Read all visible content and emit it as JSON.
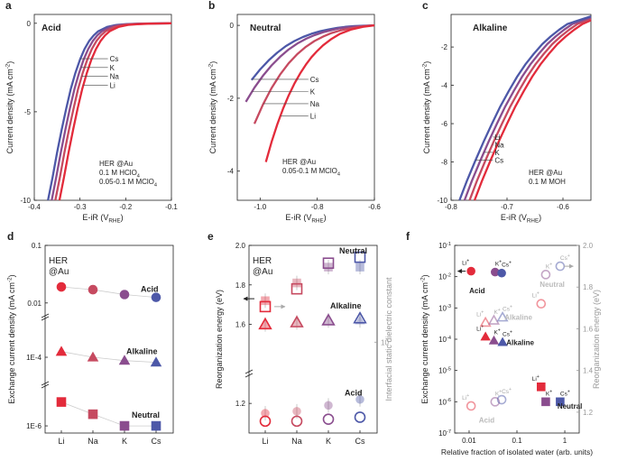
{
  "colors": {
    "Li": "#e32b3b",
    "Na": "#c64a60",
    "K": "#8a4d8e",
    "Cs": "#4d58a8",
    "grey": "#9a9a9a",
    "lightgrey": "#bbbbbb"
  },
  "chart_data": [
    {
      "panel": "a",
      "type": "line",
      "title": "Acid",
      "xlabel": "E-iR (VRHE)",
      "ylabel": "Current density (mA cm-2)",
      "xlim": [
        -0.4,
        -0.1
      ],
      "ylim": [
        -10,
        0.5
      ],
      "xticks": [
        "-0.4",
        "-0.3",
        "-0.2",
        "-0.1"
      ],
      "xtick_values": [
        -0.4,
        -0.3,
        -0.2,
        -0.1
      ],
      "yticks": [
        "-10",
        "-5",
        "0"
      ],
      "ytick_values": [
        -10,
        -5,
        0
      ],
      "legend": [
        "Cs",
        "K",
        "Na",
        "Li"
      ],
      "legend_label_x": -0.235,
      "legend_label_y": [
        -2.0,
        -2.5,
        -3.0,
        -3.5
      ],
      "legend_curve_y": [
        -2.0,
        -2.5,
        -3.0,
        -3.5
      ],
      "annotation": [
        "HER @Au",
        "0.1 M HClO4",
        "0.05-0.1 M MClO4"
      ],
      "series": [
        {
          "name": "Cs",
          "x": [
            -0.37,
            -0.36,
            -0.35,
            -0.34,
            -0.33,
            -0.32,
            -0.31,
            -0.3,
            -0.29,
            -0.28,
            -0.27,
            -0.26,
            -0.24,
            -0.22,
            -0.2,
            -0.17,
            -0.14,
            -0.1
          ],
          "y": [
            -10,
            -8.7,
            -7.3,
            -6.0,
            -4.8,
            -3.7,
            -2.8,
            -2.05,
            -1.45,
            -1.0,
            -0.68,
            -0.45,
            -0.2,
            -0.09,
            -0.05,
            -0.02,
            -0.01,
            0
          ]
        },
        {
          "name": "K",
          "x": [
            -0.362,
            -0.352,
            -0.342,
            -0.332,
            -0.322,
            -0.312,
            -0.302,
            -0.292,
            -0.282,
            -0.272,
            -0.262,
            -0.252,
            -0.232,
            -0.212,
            -0.192,
            -0.162,
            -0.132,
            -0.1
          ],
          "y": [
            -10,
            -8.7,
            -7.3,
            -6.0,
            -4.8,
            -3.7,
            -2.8,
            -2.05,
            -1.45,
            -1.0,
            -0.68,
            -0.45,
            -0.2,
            -0.09,
            -0.05,
            -0.02,
            -0.01,
            0
          ]
        },
        {
          "name": "Na",
          "x": [
            -0.354,
            -0.344,
            -0.334,
            -0.324,
            -0.314,
            -0.304,
            -0.294,
            -0.284,
            -0.274,
            -0.264,
            -0.254,
            -0.244,
            -0.224,
            -0.204,
            -0.184,
            -0.154,
            -0.124,
            -0.1
          ],
          "y": [
            -10,
            -8.7,
            -7.3,
            -6.0,
            -4.8,
            -3.7,
            -2.8,
            -2.05,
            -1.45,
            -1.0,
            -0.68,
            -0.45,
            -0.2,
            -0.09,
            -0.05,
            -0.02,
            -0.01,
            0
          ]
        },
        {
          "name": "Li",
          "x": [
            -0.345,
            -0.335,
            -0.325,
            -0.315,
            -0.305,
            -0.295,
            -0.285,
            -0.275,
            -0.265,
            -0.255,
            -0.245,
            -0.235,
            -0.215,
            -0.195,
            -0.175,
            -0.145,
            -0.12,
            -0.1
          ],
          "y": [
            -10,
            -8.7,
            -7.3,
            -6.0,
            -4.8,
            -3.7,
            -2.8,
            -2.05,
            -1.45,
            -1.0,
            -0.68,
            -0.45,
            -0.2,
            -0.09,
            -0.05,
            -0.02,
            -0.01,
            0
          ]
        }
      ]
    },
    {
      "panel": "b",
      "type": "line",
      "title": "Neutral",
      "xlabel": "E-iR (VRHE)",
      "ylabel": "Current density (mA cm-2)",
      "xlim": [
        -1.08,
        -0.6
      ],
      "ylim": [
        -4.8,
        0.3
      ],
      "xticks": [
        "-1.0",
        "-0.8",
        "-0.6"
      ],
      "xtick_values": [
        -1.0,
        -0.8,
        -0.6
      ],
      "yticks": [
        "-4",
        "-2",
        "0"
      ],
      "ytick_values": [
        -4,
        -2,
        0
      ],
      "legend": [
        "Cs",
        "K",
        "Na",
        "Li"
      ],
      "legend_label_x": -0.825,
      "legend_label_y": [
        -1.48,
        -1.82,
        -2.15,
        -2.48
      ],
      "legend_curve_y": [
        -1.48,
        -1.82,
        -2.15,
        -2.48
      ],
      "annotation": [
        "HER @Au",
        "0.05-0.1 M MClO4"
      ],
      "series": [
        {
          "name": "Cs",
          "x": [
            -1.03,
            -1.0,
            -0.97,
            -0.94,
            -0.91,
            -0.88,
            -0.85,
            -0.82,
            -0.79,
            -0.76,
            -0.73,
            -0.7,
            -0.67,
            -0.64,
            -0.6
          ],
          "y": [
            -1.5,
            -1.21,
            -0.96,
            -0.75,
            -0.57,
            -0.43,
            -0.32,
            -0.23,
            -0.16,
            -0.11,
            -0.07,
            -0.04,
            -0.02,
            -0.01,
            0
          ]
        },
        {
          "name": "K",
          "x": [
            -1.05,
            -1.02,
            -0.99,
            -0.96,
            -0.93,
            -0.9,
            -0.87,
            -0.84,
            -0.81,
            -0.78,
            -0.75,
            -0.72,
            -0.69,
            -0.66,
            -0.6
          ],
          "y": [
            -2.1,
            -1.71,
            -1.38,
            -1.1,
            -0.86,
            -0.66,
            -0.5,
            -0.37,
            -0.27,
            -0.19,
            -0.13,
            -0.08,
            -0.05,
            -0.03,
            0
          ]
        },
        {
          "name": "Na",
          "x": [
            -1.02,
            -0.99,
            -0.96,
            -0.93,
            -0.9,
            -0.87,
            -0.84,
            -0.81,
            -0.78,
            -0.75,
            -0.72,
            -0.69,
            -0.66,
            -0.63,
            -0.6
          ],
          "y": [
            -2.7,
            -2.17,
            -1.72,
            -1.35,
            -1.04,
            -0.79,
            -0.59,
            -0.43,
            -0.31,
            -0.21,
            -0.14,
            -0.09,
            -0.05,
            -0.02,
            0
          ]
        },
        {
          "name": "Li",
          "x": [
            -0.98,
            -0.96,
            -0.94,
            -0.92,
            -0.9,
            -0.88,
            -0.86,
            -0.84,
            -0.82,
            -0.8,
            -0.78,
            -0.75,
            -0.72,
            -0.68,
            -0.64,
            -0.6
          ],
          "y": [
            -3.75,
            -3.2,
            -2.72,
            -2.29,
            -1.92,
            -1.6,
            -1.32,
            -1.08,
            -0.87,
            -0.7,
            -0.55,
            -0.37,
            -0.23,
            -0.11,
            -0.04,
            0
          ]
        }
      ]
    },
    {
      "panel": "c",
      "type": "line",
      "title": "Alkaline",
      "xlabel": "E-iR (VRHE)",
      "ylabel": "Current density (mA cm-2)",
      "xlim": [
        -0.8,
        -0.55
      ],
      "ylim": [
        -10,
        -0.3
      ],
      "xticks": [
        "-0.8",
        "-0.7",
        "-0.6"
      ],
      "xtick_values": [
        -0.8,
        -0.7,
        -0.6
      ],
      "yticks": [
        "-10",
        "-8",
        "-6",
        "-4",
        "-2"
      ],
      "ytick_values": [
        -10,
        -8,
        -6,
        -4,
        -2
      ],
      "legend": [
        "Li",
        "Na",
        "K",
        "Cs"
      ],
      "legend_label_x": -0.722,
      "legend_label_y": [
        -6.7,
        -7.1,
        -7.5,
        -7.9
      ],
      "legend_curve_y": [
        -6.7,
        -7.1,
        -7.5,
        -7.9
      ],
      "annotation": [
        "HER @Au",
        "0.1 M MOH"
      ],
      "series": [
        {
          "name": "Li",
          "x": [
            -0.758,
            -0.745,
            -0.73,
            -0.715,
            -0.7,
            -0.685,
            -0.67,
            -0.655,
            -0.64,
            -0.625,
            -0.61,
            -0.595,
            -0.58,
            -0.565,
            -0.55
          ],
          "y": [
            -10,
            -9.0,
            -7.95,
            -6.95,
            -6.0,
            -5.1,
            -4.3,
            -3.55,
            -2.9,
            -2.35,
            -1.85,
            -1.45,
            -1.1,
            -0.8,
            -0.6
          ]
        },
        {
          "name": "Na",
          "x": [
            -0.767,
            -0.754,
            -0.739,
            -0.724,
            -0.709,
            -0.694,
            -0.679,
            -0.664,
            -0.649,
            -0.634,
            -0.619,
            -0.604,
            -0.589,
            -0.574,
            -0.55
          ],
          "y": [
            -10,
            -9.0,
            -7.95,
            -6.95,
            -6.0,
            -5.1,
            -4.3,
            -3.55,
            -2.9,
            -2.35,
            -1.85,
            -1.45,
            -1.1,
            -0.8,
            -0.52
          ]
        },
        {
          "name": "K",
          "x": [
            -0.776,
            -0.763,
            -0.748,
            -0.733,
            -0.718,
            -0.703,
            -0.688,
            -0.673,
            -0.658,
            -0.643,
            -0.628,
            -0.613,
            -0.598,
            -0.583,
            -0.55
          ],
          "y": [
            -10,
            -9.0,
            -7.95,
            -6.95,
            -6.0,
            -5.1,
            -4.3,
            -3.55,
            -2.9,
            -2.35,
            -1.85,
            -1.45,
            -1.1,
            -0.8,
            -0.45
          ]
        },
        {
          "name": "Cs",
          "x": [
            -0.785,
            -0.772,
            -0.757,
            -0.742,
            -0.727,
            -0.712,
            -0.697,
            -0.682,
            -0.667,
            -0.652,
            -0.637,
            -0.622,
            -0.607,
            -0.592,
            -0.55
          ],
          "y": [
            -10,
            -9.0,
            -7.95,
            -6.95,
            -6.0,
            -5.1,
            -4.3,
            -3.55,
            -2.9,
            -2.35,
            -1.85,
            -1.45,
            -1.1,
            -0.8,
            -0.4
          ]
        }
      ]
    },
    {
      "panel": "d",
      "type": "scatter",
      "title": "HER @Au",
      "xlabel": "",
      "ylabel": "Exchange current density (mA cm-2)",
      "categories": [
        "Li",
        "Na",
        "K",
        "Cs"
      ],
      "ytick_labels": [
        "0.1",
        "0.01",
        "1E-4",
        "1E-6"
      ],
      "series": [
        {
          "name": "Acid",
          "marker": "circle",
          "values": [
            0.019,
            0.017,
            0.014,
            0.0125
          ]
        },
        {
          "name": "Alkaline",
          "marker": "triangle",
          "values": [
            0.00012,
            0.0001,
            9e-05,
            8.5e-05
          ]
        },
        {
          "name": "Neutral",
          "marker": "square",
          "values": [
            5.5e-06,
            2.3e-06,
            1e-06,
            1e-06
          ]
        }
      ]
    },
    {
      "panel": "e",
      "type": "scatter",
      "title": "HER @Au",
      "xlabel": "",
      "ylabel": "Reorganization energy (eV)",
      "y2label": "Interfacial static dielectric constant",
      "categories": [
        "Li",
        "Na",
        "K",
        "Cs"
      ],
      "ylim": [
        1.05,
        2.0
      ],
      "yticks": [
        "1.2",
        "1.6",
        "1.8",
        "2.0"
      ],
      "ytick_values": [
        1.2,
        1.6,
        1.8,
        2.0
      ],
      "y2tick": "10",
      "series": [
        {
          "name": "Neutral",
          "marker": "square",
          "values": [
            1.69,
            1.78,
            1.91,
            1.94
          ],
          "dielectric": [
            1.72,
            1.81,
            1.89,
            1.89
          ]
        },
        {
          "name": "Alkaline",
          "marker": "triangle",
          "values": [
            1.6,
            1.61,
            1.62,
            1.63
          ],
          "dielectric": [
            1.6,
            1.61,
            1.62,
            1.62
          ]
        },
        {
          "name": "Acid",
          "marker": "circle",
          "values": [
            1.11,
            1.11,
            1.12,
            1.13
          ],
          "dielectric": [
            1.15,
            1.16,
            1.19,
            1.22
          ]
        }
      ]
    },
    {
      "panel": "f",
      "type": "scatter",
      "xlabel": "Relative fraction of isolated water (arb. units)",
      "ylabel": "Exchange current density (mA cm-2)",
      "y2label": "Reorganization energy (eV)",
      "xlim": [
        0.005,
        2
      ],
      "xticks": [
        "0.01",
        "0.1",
        "1"
      ],
      "xtick_values": [
        0.01,
        0.1,
        1
      ],
      "ylim": [
        1e-07,
        0.1
      ],
      "yticks": [
        "10-7",
        "10-6",
        "10-5",
        "10-4",
        "10-3",
        "10-2",
        "10-1"
      ],
      "ytick_values": [
        1e-07,
        1e-06,
        1e-05,
        0.0001,
        0.001,
        0.01,
        0.1
      ],
      "y2lim": [
        1.1,
        2.0
      ],
      "y2ticks": [
        "1.2",
        "1.4",
        "1.6",
        "1.8",
        "2.0"
      ],
      "y2tick_values": [
        1.2,
        1.4,
        1.6,
        1.8,
        2.0
      ],
      "group_labels": [
        "Acid",
        "Alkaline",
        "Neutral",
        "Alkaline",
        "Neutral",
        "Acid"
      ],
      "series": [
        {
          "name": "Acid",
          "marker": "circle",
          "labels": [
            "Li+",
            "K+",
            "Cs+"
          ],
          "x": [
            0.011,
            0.035,
            0.048
          ],
          "values": [
            0.015,
            0.014,
            0.013
          ]
        },
        {
          "name": "Alkaline",
          "marker": "triangle",
          "labels": [
            "Li+",
            "K+",
            "Cs+"
          ],
          "x": [
            0.022,
            0.033,
            0.05
          ],
          "values": [
            0.00012,
            9e-05,
            8e-05
          ]
        },
        {
          "name": "Neutral",
          "marker": "square",
          "labels": [
            "Li+",
            "K+",
            "Cs+"
          ],
          "x": [
            0.32,
            0.4,
            0.8
          ],
          "values": [
            3e-06,
            1e-06,
            1e-06
          ]
        },
        {
          "name": "Reorganization energy (acid)",
          "marker": "open-circle",
          "labels": [
            "Li+",
            "K+",
            "Cs+"
          ],
          "x": [
            0.011,
            0.035,
            0.048
          ],
          "values": [
            1.23,
            1.25,
            1.26
          ]
        },
        {
          "name": "Reorganization energy (alkaline)",
          "marker": "open-triangle",
          "labels": [
            "Li+",
            "K+",
            "Cs+"
          ],
          "x": [
            0.022,
            0.033,
            0.05
          ],
          "values": [
            1.63,
            1.64,
            1.655
          ]
        },
        {
          "name": "Reorganization energy (neutral)",
          "marker": "open-circle",
          "labels": [
            "Li+",
            "K+",
            "Cs+"
          ],
          "x": [
            0.32,
            0.4,
            0.8
          ],
          "values": [
            1.72,
            1.86,
            1.9
          ]
        }
      ]
    }
  ]
}
